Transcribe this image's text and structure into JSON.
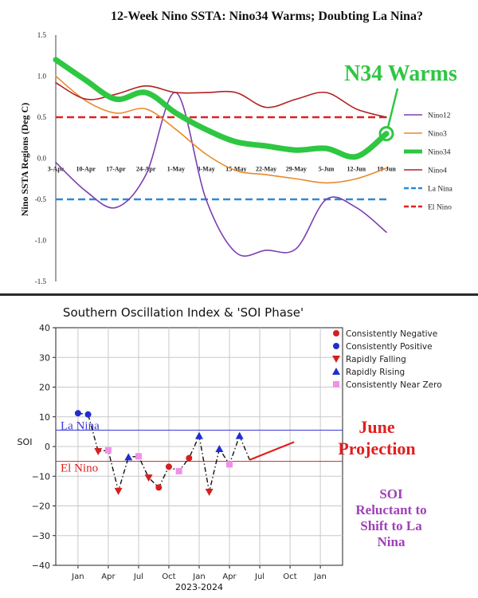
{
  "chart_data": [
    {
      "type": "line",
      "title": "12-Week Nino SSTA: Nino34 Warms;  Doubting  La Nina?",
      "ylabel": "Nino SSTA Regions (Deg C)",
      "xlabel": "",
      "ylim": [
        -1.5,
        1.5
      ],
      "yticks": [
        1.5,
        1.0,
        0.5,
        0.0,
        -0.5,
        -1.0,
        -1.5
      ],
      "ytick_labels": [
        "1.5",
        "1.0",
        "0.5",
        "0.0",
        "-0.5",
        "-1.0",
        "-1.5"
      ],
      "categories": [
        "3-Apr",
        "10-Apr",
        "17-Apr",
        "24-Apr",
        "1-May",
        "8-May",
        "15-May",
        "22-May",
        "29-May",
        "5-Jun",
        "12-Jun",
        "19-Jun"
      ],
      "grid": false,
      "legend_position": "right",
      "series": [
        {
          "name": "Nino12",
          "color": "#7b3fb0",
          "values": [
            -0.05,
            -0.4,
            -0.6,
            -0.2,
            0.8,
            -0.5,
            -1.15,
            -1.12,
            -1.1,
            -0.5,
            -0.6,
            -0.9
          ]
        },
        {
          "name": "Nino3",
          "color": "#e98a2c",
          "values": [
            1.0,
            0.7,
            0.55,
            0.6,
            0.35,
            0.05,
            -0.15,
            -0.2,
            -0.25,
            -0.3,
            -0.25,
            -0.12
          ]
        },
        {
          "name": "Nino34",
          "color": "#2ec742",
          "values": [
            1.2,
            0.95,
            0.72,
            0.8,
            0.55,
            0.35,
            0.2,
            0.15,
            0.1,
            0.12,
            0.02,
            0.3
          ]
        },
        {
          "name": "Nino4",
          "color": "#b22222",
          "values": [
            0.92,
            0.72,
            0.78,
            0.88,
            0.8,
            0.8,
            0.8,
            0.62,
            0.72,
            0.8,
            0.6,
            0.5
          ]
        },
        {
          "name": "La Nina",
          "color": "#2d8ad6",
          "values": [
            -0.5,
            -0.5,
            -0.5,
            -0.5,
            -0.5,
            -0.5,
            -0.5,
            -0.5,
            -0.5,
            -0.5,
            -0.5,
            -0.5
          ]
        },
        {
          "name": "El Nino",
          "color": "#e02020",
          "values": [
            0.5,
            0.5,
            0.5,
            0.5,
            0.5,
            0.5,
            0.5,
            0.5,
            0.5,
            0.5,
            0.5,
            0.5
          ]
        }
      ],
      "annotation": {
        "text": "N34 Warms",
        "color": "#2ec742",
        "target_category": "19-Jun",
        "target_value": 0.3
      }
    },
    {
      "type": "line",
      "title": "Southern Oscillation Index & 'SOI Phase'",
      "ylabel": "SOI",
      "xlabel": "2023-2024",
      "ylim": [
        -40,
        40
      ],
      "yticks": [
        40,
        30,
        20,
        10,
        0,
        -10,
        -20,
        -30,
        -40
      ],
      "ytick_labels": [
        "40",
        "30",
        "20",
        "10",
        "0",
        "−10",
        "−20",
        "−30",
        "−40"
      ],
      "xticks": [
        0,
        3,
        6,
        9,
        12,
        15,
        18,
        21,
        24
      ],
      "xtick_labels": [
        "Jan",
        "Apr",
        "Jul",
        "Oct",
        "Jan",
        "Apr",
        "Jul",
        "Oct",
        "Jan"
      ],
      "grid": true,
      "legend_position": "top-right",
      "legend": [
        {
          "name": "Consistently Negative",
          "color": "#d42020",
          "marker": "circle"
        },
        {
          "name": "Consistently Positive",
          "color": "#1f2fd0",
          "marker": "circle"
        },
        {
          "name": "Rapidly Falling",
          "color": "#d42020",
          "marker": "triangle-down"
        },
        {
          "name": "Rapidly Rising",
          "color": "#1f2fd0",
          "marker": "triangle-up"
        },
        {
          "name": "Consistently Near Zero",
          "color": "#f090e8",
          "marker": "square"
        }
      ],
      "points": [
        {
          "x": 0,
          "y": 11.2,
          "phase": "Consistently Positive"
        },
        {
          "x": 1,
          "y": 10.8,
          "phase": "Consistently Positive"
        },
        {
          "x": 2,
          "y": -1.6,
          "phase": "Rapidly Falling"
        },
        {
          "x": 3,
          "y": -1.3,
          "phase": "Consistently Near Zero"
        },
        {
          "x": 4,
          "y": -15.0,
          "phase": "Rapidly Falling"
        },
        {
          "x": 5,
          "y": -3.6,
          "phase": "Rapidly Rising"
        },
        {
          "x": 6,
          "y": -3.3,
          "phase": "Consistently Near Zero"
        },
        {
          "x": 7,
          "y": -10.5,
          "phase": "Rapidly Falling"
        },
        {
          "x": 8,
          "y": -13.8,
          "phase": "Consistently Negative"
        },
        {
          "x": 9,
          "y": -6.8,
          "phase": "Consistently Negative"
        },
        {
          "x": 10,
          "y": -8.3,
          "phase": "Consistently Near Zero"
        },
        {
          "x": 11,
          "y": -3.9,
          "phase": "Consistently Negative"
        },
        {
          "x": 12,
          "y": 3.6,
          "phase": "Rapidly Rising"
        },
        {
          "x": 13,
          "y": -15.3,
          "phase": "Rapidly Falling"
        },
        {
          "x": 14,
          "y": -0.8,
          "phase": "Rapidly Rising"
        },
        {
          "x": 15,
          "y": -6.0,
          "phase": "Consistently Near Zero"
        },
        {
          "x": 16,
          "y": 3.6,
          "phase": "Rapidly Rising"
        },
        {
          "x": 17,
          "y": -4.5,
          "phase": "none"
        }
      ],
      "thresholds": [
        {
          "name": "La Nina",
          "y": 5.5,
          "color": "#3a3ad8",
          "label_color": "#3a3ad8"
        },
        {
          "name": "El Nino",
          "y": -5.0,
          "color": "#c92a2a",
          "label_color": "#e02020"
        }
      ],
      "projection": {
        "label": [
          "June",
          "Projection"
        ],
        "color": "#e02020",
        "from": {
          "x": 17,
          "y": -4.5
        },
        "to": {
          "x": 21.4,
          "y": 1.5
        }
      },
      "annotation": {
        "lines": [
          "SOI",
          "Reluctant to",
          "Shift to La",
          "Nina"
        ],
        "color": "#a040b8"
      }
    }
  ]
}
